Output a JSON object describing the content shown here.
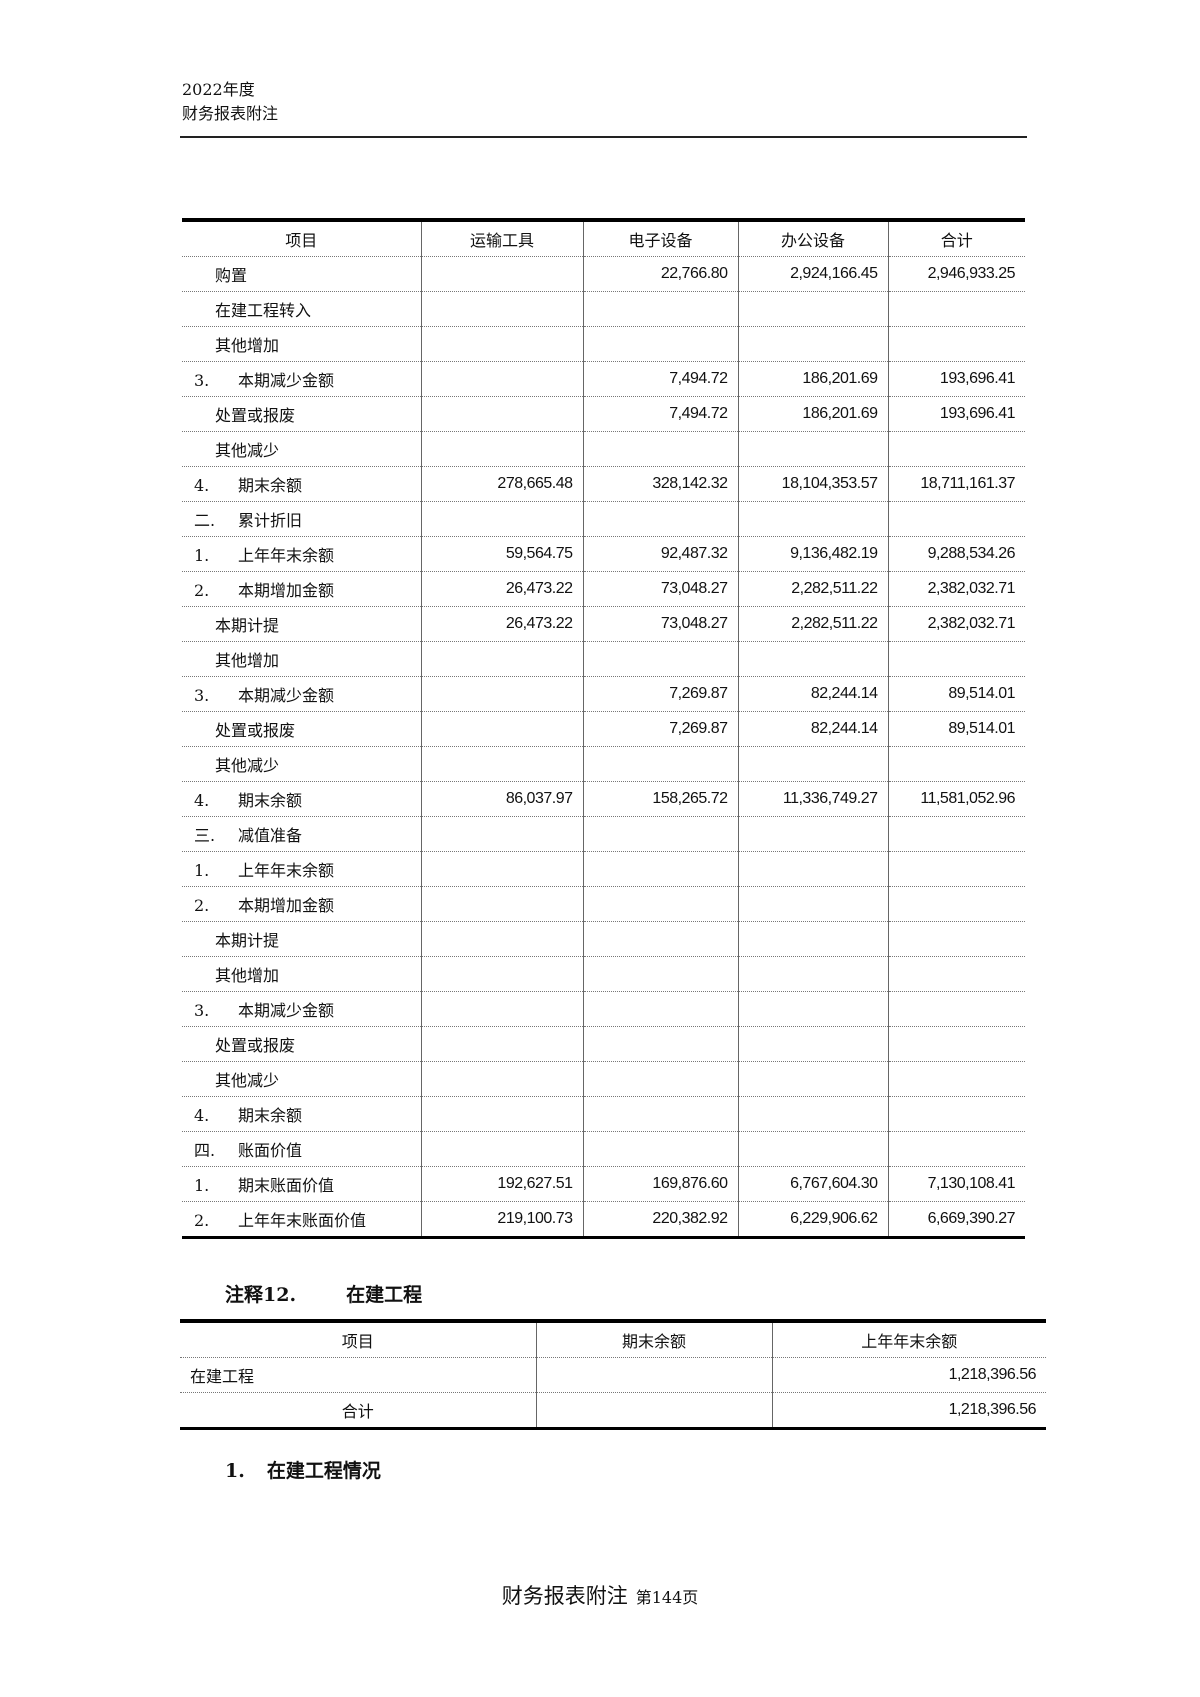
{
  "header": {
    "year": "2022年度",
    "title": "财务报表附注"
  },
  "table1": {
    "columns": [
      "项目",
      "运输工具",
      "电子设备",
      "办公设备",
      "合计"
    ],
    "rows": [
      {
        "no": "",
        "label": "购置",
        "values": [
          "",
          "22,766.80",
          "2,924,166.45",
          "2,946,933.25"
        ]
      },
      {
        "no": "",
        "label": "在建工程转入",
        "values": [
          "",
          "",
          "",
          ""
        ]
      },
      {
        "no": "",
        "label": "其他增加",
        "values": [
          "",
          "",
          "",
          ""
        ]
      },
      {
        "no": "3.",
        "label": "本期减少金额",
        "values": [
          "",
          "7,494.72",
          "186,201.69",
          "193,696.41"
        ]
      },
      {
        "no": "",
        "label": "处置或报废",
        "values": [
          "",
          "7,494.72",
          "186,201.69",
          "193,696.41"
        ]
      },
      {
        "no": "",
        "label": "其他减少",
        "values": [
          "",
          "",
          "",
          ""
        ]
      },
      {
        "no": "4.",
        "label": "期末余额",
        "values": [
          "278,665.48",
          "328,142.32",
          "18,104,353.57",
          "18,711,161.37"
        ]
      },
      {
        "no": "二.",
        "label": "累计折旧",
        "values": [
          "",
          "",
          "",
          ""
        ]
      },
      {
        "no": "1.",
        "label": "上年年末余额",
        "values": [
          "59,564.75",
          "92,487.32",
          "9,136,482.19",
          "9,288,534.26"
        ]
      },
      {
        "no": "2.",
        "label": "本期增加金额",
        "values": [
          "26,473.22",
          "73,048.27",
          "2,282,511.22",
          "2,382,032.71"
        ]
      },
      {
        "no": "",
        "label": "本期计提",
        "values": [
          "26,473.22",
          "73,048.27",
          "2,282,511.22",
          "2,382,032.71"
        ]
      },
      {
        "no": "",
        "label": "其他增加",
        "values": [
          "",
          "",
          "",
          ""
        ]
      },
      {
        "no": "3.",
        "label": "本期减少金额",
        "values": [
          "",
          "7,269.87",
          "82,244.14",
          "89,514.01"
        ]
      },
      {
        "no": "",
        "label": "处置或报废",
        "values": [
          "",
          "7,269.87",
          "82,244.14",
          "89,514.01"
        ]
      },
      {
        "no": "",
        "label": "其他减少",
        "values": [
          "",
          "",
          "",
          ""
        ]
      },
      {
        "no": "4.",
        "label": "期末余额",
        "values": [
          "86,037.97",
          "158,265.72",
          "11,336,749.27",
          "11,581,052.96"
        ]
      },
      {
        "no": "三.",
        "label": "减值准备",
        "values": [
          "",
          "",
          "",
          ""
        ]
      },
      {
        "no": "1.",
        "label": "上年年末余额",
        "values": [
          "",
          "",
          "",
          ""
        ]
      },
      {
        "no": "2.",
        "label": "本期增加金额",
        "values": [
          "",
          "",
          "",
          ""
        ]
      },
      {
        "no": "",
        "label": "本期计提",
        "values": [
          "",
          "",
          "",
          ""
        ]
      },
      {
        "no": "",
        "label": "其他增加",
        "values": [
          "",
          "",
          "",
          ""
        ]
      },
      {
        "no": "3.",
        "label": "本期减少金额",
        "values": [
          "",
          "",
          "",
          ""
        ]
      },
      {
        "no": "",
        "label": "处置或报废",
        "values": [
          "",
          "",
          "",
          ""
        ]
      },
      {
        "no": "",
        "label": "其他减少",
        "values": [
          "",
          "",
          "",
          ""
        ]
      },
      {
        "no": "4.",
        "label": "期末余额",
        "values": [
          "",
          "",
          "",
          ""
        ]
      },
      {
        "no": "四.",
        "label": "账面价值",
        "values": [
          "",
          "",
          "",
          ""
        ]
      },
      {
        "no": "1.",
        "label": "期末账面价值",
        "values": [
          "192,627.51",
          "169,876.60",
          "6,767,604.30",
          "7,130,108.41"
        ]
      },
      {
        "no": "2.",
        "label": "上年年末账面价值",
        "values": [
          "219,100.73",
          "220,382.92",
          "6,229,906.62",
          "6,669,390.27"
        ]
      }
    ]
  },
  "note12": {
    "number": "注释12.",
    "title": "在建工程"
  },
  "table2": {
    "columns": [
      "项目",
      "期末余额",
      "上年年末余额"
    ],
    "rows": [
      {
        "label": "在建工程",
        "values": [
          "",
          "1,218,396.56"
        ]
      },
      {
        "label": "合计",
        "values": [
          "",
          "1,218,396.56"
        ],
        "center": true
      }
    ]
  },
  "subsection": {
    "no": "1.",
    "title": "在建工程情况"
  },
  "footer": {
    "title": "财务报表附注",
    "page": "第144页"
  }
}
